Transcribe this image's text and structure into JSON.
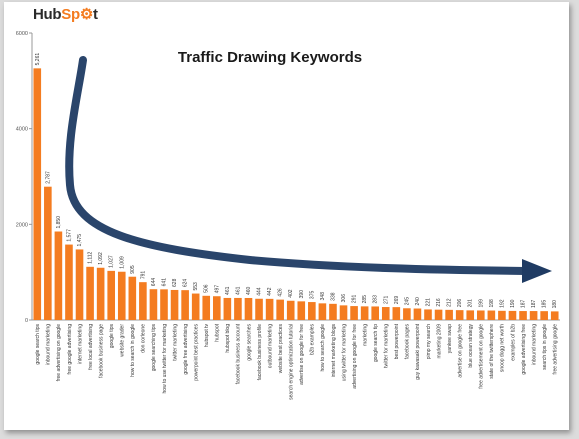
{
  "brand": {
    "logo_text_a": "Hub",
    "logo_text_b": "Sp",
    "logo_text_c": "t",
    "accent": "#f47c20"
  },
  "chart_data": {
    "type": "bar",
    "title": "Traffic Drawing Keywords",
    "xlabel": "",
    "ylabel": "",
    "ylim": [
      0,
      6000
    ],
    "yticks": [
      0,
      2000,
      4000,
      6000
    ],
    "grid": false,
    "bar_color": "#f47c20",
    "arrow_color": "#1f3b63",
    "categories": [
      "google search tips",
      "inbound marketing",
      "free advertising on google",
      "free google advertising",
      "internet marketing",
      "free local advertising",
      "facebook business page",
      "google tips",
      "website grader",
      "how to search in google",
      "don corleone",
      "google searching tips",
      "how to use twitter for marketing",
      "twitter marketing",
      "google free advertising",
      "powerpoint best practices",
      "hubspot tv",
      "hubspot",
      "hubspot blog",
      "facebook business account",
      "google searches",
      "facebook business profile",
      "outbound marketing",
      "website best practices",
      "search engine optimization tutorial",
      "advertise on google for free",
      "b2b examples",
      "how to search google",
      "internet marketing blogs",
      "using twitter for marketing",
      "advertising on google for free",
      "marketing",
      "google search tip",
      "twitter for marketing",
      "best powerpoint",
      "facebook pages",
      "guy kawasaki powerpoint",
      "pimp my search",
      "marketing 2009",
      "yankee swap",
      "advertise on google free",
      "blue ocean strategy",
      "free advertisement on google",
      "state of the twittersphere",
      "snoop dogg net worth",
      "examples of b2b",
      "google advertising free",
      "inbound marketing ",
      "search tips in google",
      "free advertising google"
    ],
    "values": [
      5261,
      2787,
      1850,
      1577,
      1475,
      1112,
      1092,
      1027,
      1009,
      905,
      791,
      644,
      641,
      628,
      624,
      553,
      506,
      497,
      461,
      461,
      460,
      444,
      442,
      426,
      402,
      390,
      375,
      348,
      338,
      306,
      291,
      285,
      283,
      271,
      269,
      245,
      240,
      221,
      216,
      212,
      206,
      201,
      199,
      198,
      192,
      190,
      187,
      187,
      185,
      180
    ],
    "value_labels": [
      "5,261",
      "2,787",
      "1,850",
      "1,577",
      "1,475",
      "1,112",
      "1,092",
      "1,027",
      "1,009",
      "905",
      "791",
      "644",
      "641",
      "628",
      "624",
      "553",
      "506",
      "497",
      "461",
      "461",
      "460",
      "444",
      "442",
      "426",
      "402",
      "390",
      "375",
      "348",
      "338",
      "306",
      "291",
      "285",
      "283",
      "271",
      "269",
      "245",
      "240",
      "221",
      "216",
      "212",
      "206",
      "201",
      "199",
      "198",
      "192",
      "190",
      "187",
      "187",
      "185",
      "180"
    ],
    "ytick_labels": [
      "0",
      "2000",
      "4000",
      "6000"
    ]
  }
}
